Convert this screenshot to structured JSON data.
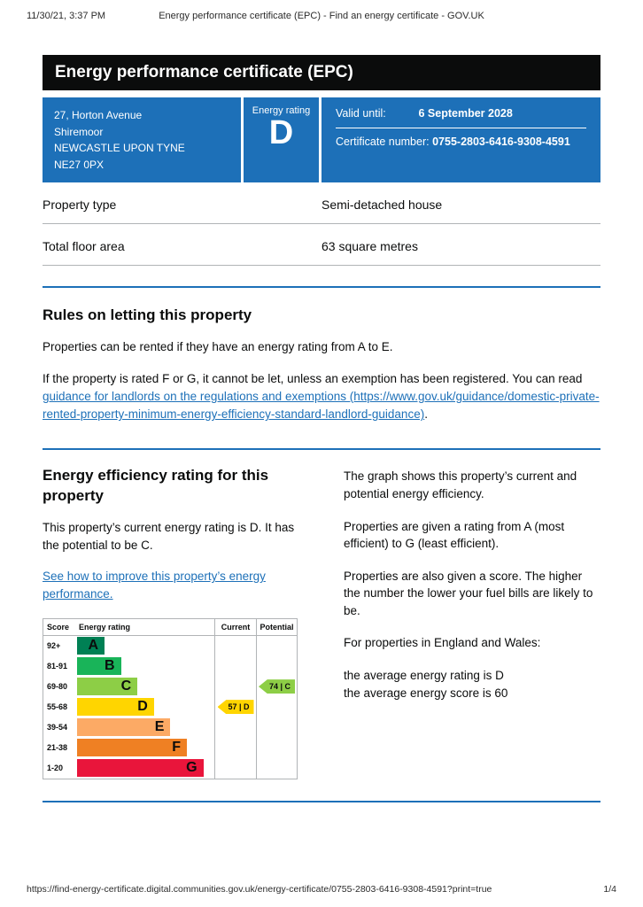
{
  "print_header": {
    "datetime": "11/30/21, 3:37 PM",
    "title": "Energy performance certificate (EPC) - Find an energy certificate - GOV.UK"
  },
  "print_footer": {
    "url": "https://find-energy-certificate.digital.communities.gov.uk/energy-certificate/0755-2803-6416-9308-4591?print=true",
    "page_indicator": "1/4"
  },
  "banner": {
    "title": "Energy performance certificate (EPC)"
  },
  "summary": {
    "address_lines": [
      "27, Horton Avenue",
      "Shiremoor",
      "NEWCASTLE UPON TYNE",
      "NE27 0PX"
    ],
    "energy_rating_label": "Energy rating",
    "energy_rating": "D",
    "valid_until_label": "Valid until:",
    "valid_until_value": "6 September 2028",
    "certificate_number_label": "Certificate number:",
    "certificate_number_value": "0755-2803-6416-9308-4591"
  },
  "property_details": {
    "rows": [
      {
        "label": "Property type",
        "value": "Semi-detached house"
      },
      {
        "label": "Total floor area",
        "value": "63 square metres"
      }
    ]
  },
  "letting_rules": {
    "heading": "Rules on letting this property",
    "para1": "Properties can be rented if they have an energy rating from A to E.",
    "para2_before": "If the property is rated F or G, it cannot be let, unless an exemption has been registered. You can read ",
    "para2_link_text": "guidance for landlords on the regulations and exemptions (https://www.gov.uk/guidance/domestic-private-rented-property-minimum-energy-efficiency-standard-landlord-guidance)",
    "para2_after": "."
  },
  "efficiency_section": {
    "heading": "Energy efficiency rating for this property",
    "para1": "This property’s current energy rating is D. It has the potential to be C.",
    "link_text": "See how to improve this property’s energy performance.",
    "right_column_paras": [
      "The graph shows this property’s current and potential energy efficiency.",
      "Properties are given a rating from A (most efficient) to G (least efficient).",
      "Properties are also given a score. The higher the number the lower your fuel bills are likely to be.",
      "For properties in England and Wales:"
    ],
    "average_lines": [
      "the average energy rating is D",
      "the average energy score is 60"
    ]
  },
  "chart_data": {
    "type": "epc-rating-bar",
    "headers": {
      "score": "Score",
      "rating": "Energy rating",
      "current": "Current",
      "potential": "Potential"
    },
    "bands": [
      {
        "score": "92+",
        "letter": "A",
        "color": "#008054"
      },
      {
        "score": "81-91",
        "letter": "B",
        "color": "#19b459"
      },
      {
        "score": "69-80",
        "letter": "C",
        "color": "#8dce46"
      },
      {
        "score": "55-68",
        "letter": "D",
        "color": "#ffd500"
      },
      {
        "score": "39-54",
        "letter": "E",
        "color": "#fcaa65"
      },
      {
        "score": "21-38",
        "letter": "F",
        "color": "#ef8023"
      },
      {
        "score": "1-20",
        "letter": "G",
        "color": "#e9153b"
      }
    ],
    "current": {
      "score": 57,
      "band_letter": "D",
      "label": "57 | D",
      "color": "#ffd500"
    },
    "potential": {
      "score": 74,
      "band_letter": "C",
      "label": "74 | C",
      "color": "#8dce46"
    }
  },
  "colors": {
    "govuk_blue": "#1d70b8",
    "banner_black": "#0b0c0c",
    "border_grey": "#b1b4b6"
  }
}
